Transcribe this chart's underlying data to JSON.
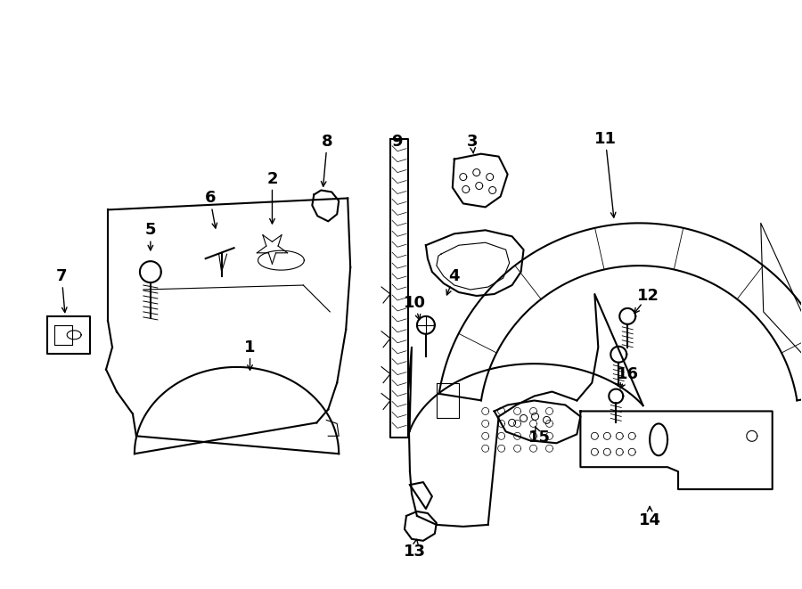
{
  "background_color": "#ffffff",
  "line_color": "#000000",
  "text_color": "#000000",
  "fig_width": 9.0,
  "fig_height": 6.61,
  "dpi": 100
}
